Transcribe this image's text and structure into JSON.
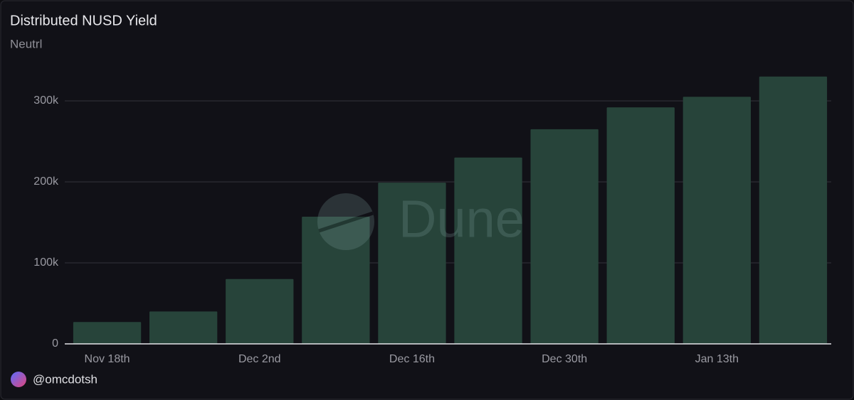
{
  "chart_data": {
    "type": "bar",
    "title": "Distributed NUSD Yield",
    "subtitle": "Neutrl",
    "categories": [
      "Nov 18th",
      null,
      "Dec 2nd",
      null,
      "Dec 16th",
      null,
      "Dec 30th",
      null,
      "Jan 13th",
      null
    ],
    "values": [
      27000,
      40000,
      80000,
      157000,
      199000,
      230000,
      265000,
      292000,
      305000,
      330000
    ],
    "color": "#27443a",
    "ylim": [
      0,
      350000
    ],
    "yticks": [
      0,
      {
        "value": 100000,
        "label": "100k"
      },
      {
        "value": 200000,
        "label": "200k"
      },
      {
        "value": 300000,
        "label": "300k"
      }
    ],
    "grid": true,
    "watermark": "Dune",
    "footer": "@omcdotsh"
  }
}
